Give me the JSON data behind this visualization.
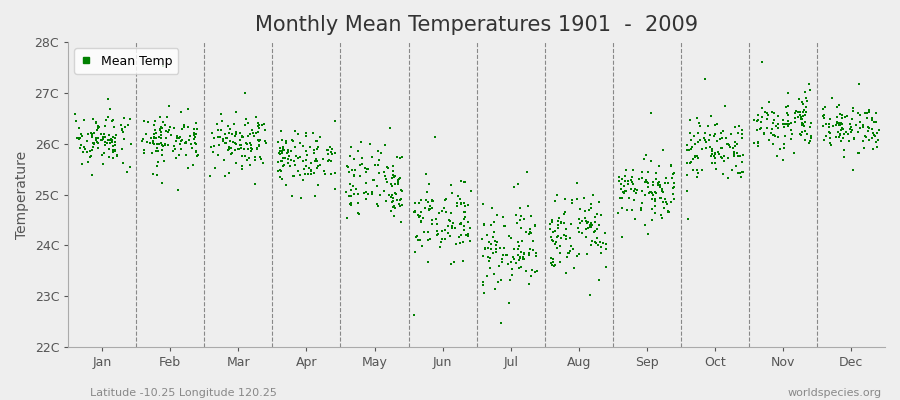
{
  "title": "Monthly Mean Temperatures 1901  -  2009",
  "ylabel": "Temperature",
  "xlabel_bottom_left": "Latitude -10.25 Longitude 120.25",
  "xlabel_bottom_right": "worldspecies.org",
  "legend_label": "Mean Temp",
  "marker_color": "#008000",
  "ylim": [
    22,
    28
  ],
  "yticks": [
    22,
    23,
    24,
    25,
    26,
    27,
    28
  ],
  "ytick_labels": [
    "22C",
    "23C",
    "24C",
    "25C",
    "26C",
    "27C",
    "28C"
  ],
  "months": [
    "Jan",
    "Feb",
    "Mar",
    "Apr",
    "May",
    "Jun",
    "Jul",
    "Aug",
    "Sep",
    "Oct",
    "Nov",
    "Dec"
  ],
  "n_years": 109,
  "background_color": "#eeeeee",
  "grid_color": "#888888",
  "title_fontsize": 15,
  "label_fontsize": 10,
  "tick_fontsize": 9,
  "monthly_means": [
    26.1,
    26.1,
    26.0,
    25.7,
    25.2,
    24.5,
    24.0,
    24.2,
    25.1,
    25.9,
    26.4,
    26.3
  ],
  "monthly_stds": [
    0.25,
    0.25,
    0.25,
    0.3,
    0.35,
    0.4,
    0.4,
    0.35,
    0.3,
    0.3,
    0.25,
    0.25
  ]
}
